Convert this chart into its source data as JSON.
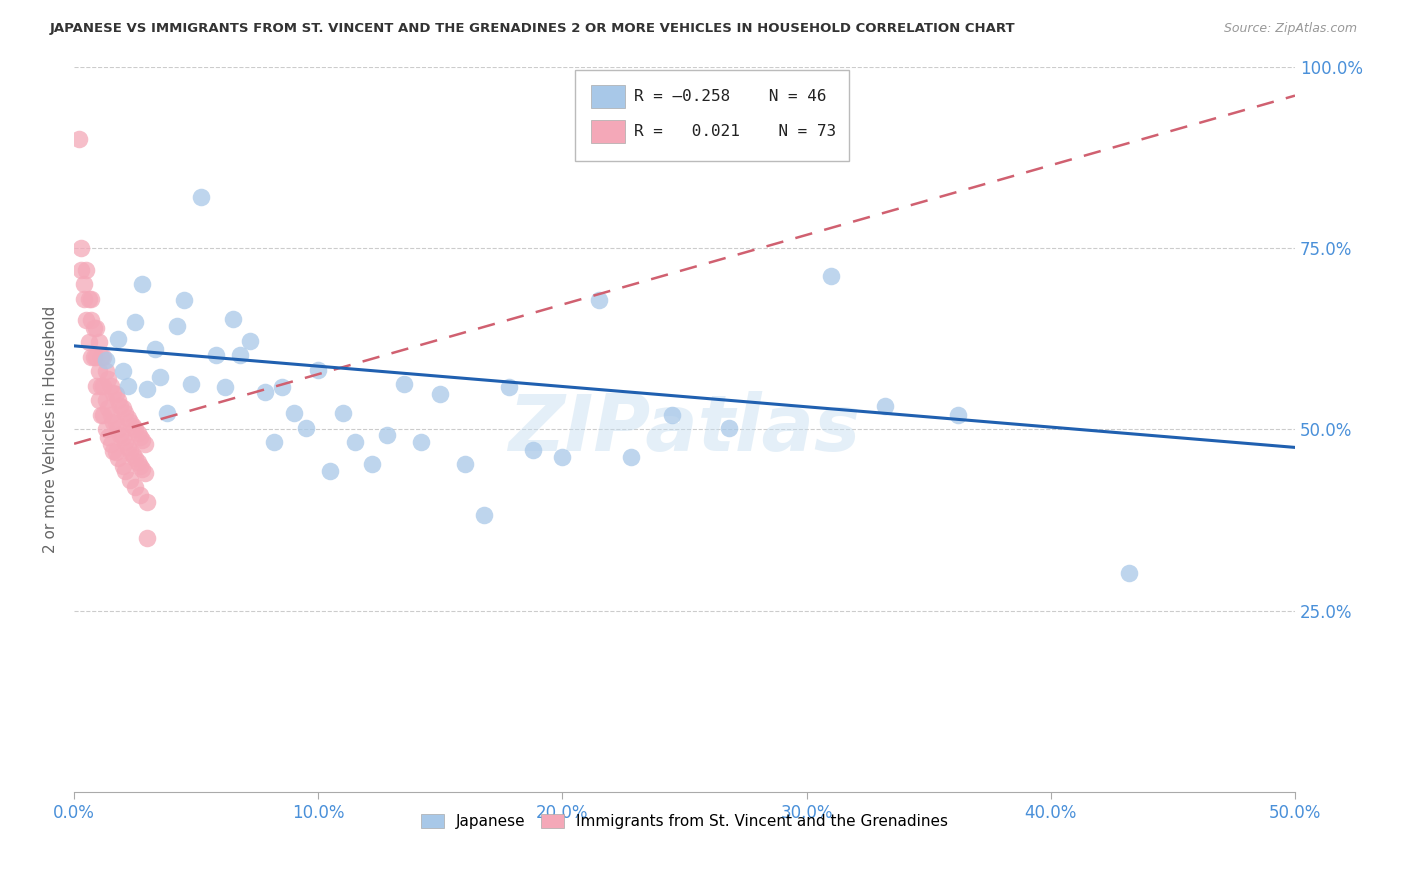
{
  "title": "JAPANESE VS IMMIGRANTS FROM ST. VINCENT AND THE GRENADINES 2 OR MORE VEHICLES IN HOUSEHOLD CORRELATION CHART",
  "source": "Source: ZipAtlas.com",
  "ylabel": "2 or more Vehicles in Household",
  "xlim": [
    0.0,
    0.5
  ],
  "ylim": [
    0.0,
    1.0
  ],
  "xtick_labels": [
    "0.0%",
    "10.0%",
    "20.0%",
    "30.0%",
    "40.0%",
    "50.0%"
  ],
  "xtick_vals": [
    0.0,
    0.1,
    0.2,
    0.3,
    0.4,
    0.5
  ],
  "ytick_vals": [
    0.25,
    0.5,
    0.75,
    1.0
  ],
  "ytick_right_labels": [
    "25.0%",
    "50.0%",
    "75.0%",
    "100.0%"
  ],
  "japanese_R": -0.258,
  "japanese_N": 46,
  "svg_R": 0.021,
  "svg_N": 73,
  "japanese_color": "#a8c8e8",
  "svg_color": "#f4a8b8",
  "japanese_line_color": "#2060b0",
  "svg_line_color": "#d06070",
  "japanese_x": [
    0.013,
    0.018,
    0.02,
    0.022,
    0.025,
    0.028,
    0.03,
    0.033,
    0.035,
    0.038,
    0.042,
    0.045,
    0.048,
    0.052,
    0.058,
    0.062,
    0.065,
    0.068,
    0.072,
    0.078,
    0.082,
    0.085,
    0.09,
    0.095,
    0.1,
    0.105,
    0.11,
    0.115,
    0.122,
    0.128,
    0.135,
    0.142,
    0.15,
    0.16,
    0.168,
    0.178,
    0.188,
    0.2,
    0.215,
    0.228,
    0.245,
    0.268,
    0.31,
    0.332,
    0.362,
    0.432
  ],
  "japanese_y": [
    0.595,
    0.625,
    0.58,
    0.56,
    0.648,
    0.7,
    0.555,
    0.61,
    0.572,
    0.522,
    0.642,
    0.678,
    0.562,
    0.82,
    0.602,
    0.558,
    0.652,
    0.602,
    0.622,
    0.552,
    0.482,
    0.558,
    0.522,
    0.502,
    0.582,
    0.442,
    0.522,
    0.482,
    0.452,
    0.492,
    0.562,
    0.482,
    0.548,
    0.452,
    0.382,
    0.558,
    0.472,
    0.462,
    0.678,
    0.462,
    0.52,
    0.502,
    0.712,
    0.532,
    0.52,
    0.302
  ],
  "svg_x": [
    0.002,
    0.003,
    0.003,
    0.004,
    0.004,
    0.005,
    0.005,
    0.006,
    0.006,
    0.007,
    0.007,
    0.007,
    0.008,
    0.008,
    0.009,
    0.009,
    0.009,
    0.01,
    0.01,
    0.01,
    0.011,
    0.011,
    0.011,
    0.012,
    0.012,
    0.012,
    0.013,
    0.013,
    0.013,
    0.014,
    0.014,
    0.014,
    0.015,
    0.015,
    0.015,
    0.016,
    0.016,
    0.016,
    0.017,
    0.017,
    0.017,
    0.018,
    0.018,
    0.018,
    0.019,
    0.019,
    0.02,
    0.02,
    0.02,
    0.021,
    0.021,
    0.021,
    0.022,
    0.022,
    0.023,
    0.023,
    0.023,
    0.024,
    0.024,
    0.025,
    0.025,
    0.025,
    0.026,
    0.026,
    0.027,
    0.027,
    0.027,
    0.028,
    0.028,
    0.029,
    0.029,
    0.03,
    0.03
  ],
  "svg_y": [
    0.9,
    0.75,
    0.72,
    0.7,
    0.68,
    0.72,
    0.65,
    0.68,
    0.62,
    0.68,
    0.65,
    0.6,
    0.64,
    0.6,
    0.64,
    0.6,
    0.56,
    0.62,
    0.58,
    0.54,
    0.6,
    0.56,
    0.52,
    0.6,
    0.56,
    0.52,
    0.58,
    0.54,
    0.5,
    0.57,
    0.53,
    0.49,
    0.56,
    0.52,
    0.48,
    0.55,
    0.51,
    0.47,
    0.548,
    0.508,
    0.468,
    0.54,
    0.5,
    0.46,
    0.532,
    0.492,
    0.53,
    0.49,
    0.45,
    0.522,
    0.482,
    0.442,
    0.515,
    0.475,
    0.51,
    0.47,
    0.43,
    0.505,
    0.465,
    0.5,
    0.46,
    0.42,
    0.495,
    0.455,
    0.49,
    0.45,
    0.41,
    0.485,
    0.445,
    0.48,
    0.44,
    0.4,
    0.35
  ],
  "svg_trendline_x0": 0.0,
  "svg_trendline_y0": 0.48,
  "svg_trendline_x1": 0.5,
  "svg_trendline_y1": 0.96,
  "jp_trendline_x0": 0.0,
  "jp_trendline_y0": 0.615,
  "jp_trendline_x1": 0.5,
  "jp_trendline_y1": 0.475
}
